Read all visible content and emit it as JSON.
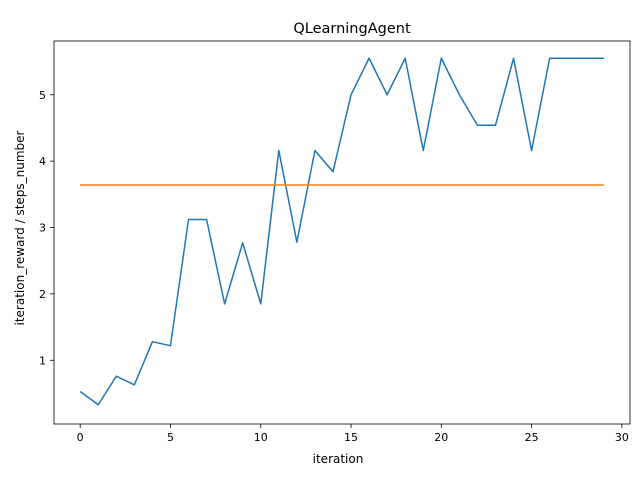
{
  "chart_data": {
    "type": "line",
    "title": "QLearningAgent",
    "xlabel": "iteration",
    "ylabel": "iteration_reward / steps_number",
    "xlim": [
      -1.45,
      30.45
    ],
    "ylim": [
      0.04,
      5.81
    ],
    "xticks": [
      0,
      5,
      10,
      15,
      20,
      25,
      30
    ],
    "yticks": [
      1,
      2,
      3,
      4,
      5
    ],
    "grid": false,
    "legend": "none",
    "series": [
      {
        "color": "#1f77b4",
        "x": [
          0,
          1,
          2,
          3,
          4,
          5,
          6,
          7,
          8,
          9,
          10,
          11,
          12,
          13,
          14,
          15,
          16,
          17,
          18,
          19,
          20,
          21,
          22,
          23,
          24,
          25,
          26,
          27,
          28,
          29
        ],
        "y": [
          0.53,
          0.33,
          0.76,
          0.63,
          1.28,
          1.22,
          3.12,
          3.12,
          1.85,
          2.77,
          1.85,
          4.16,
          2.78,
          4.16,
          3.84,
          5.0,
          5.55,
          5.0,
          5.55,
          4.16,
          5.55,
          5.0,
          4.54,
          4.54,
          5.55,
          4.16,
          5.55,
          5.55,
          5.55,
          5.55
        ]
      },
      {
        "color": "#ff7f0e",
        "x": [
          0,
          29
        ],
        "y": [
          3.64,
          3.64
        ]
      }
    ]
  }
}
